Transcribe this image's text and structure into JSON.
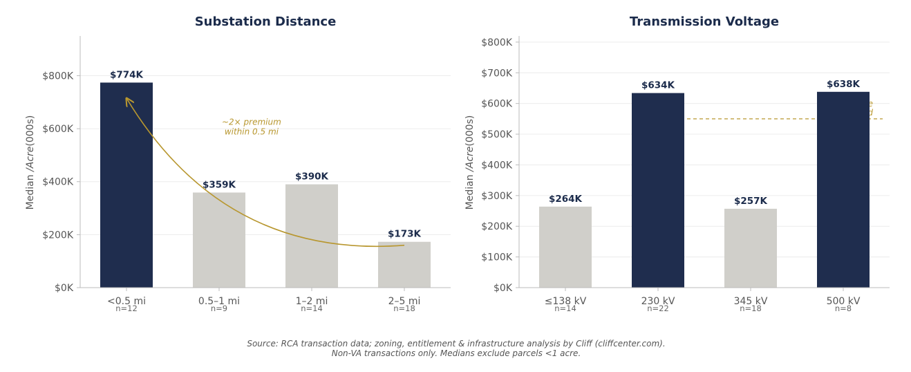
{
  "chart_data": [
    {
      "type": "bar",
      "title": "Substation Distance",
      "ylabel": "Median /Acre (000s)",
      "ylabel_parts": [
        "Median ",
        "/Acre",
        "(000s)"
      ],
      "ylim": [
        0,
        950
      ],
      "yticks": [
        0,
        200,
        400,
        600,
        800
      ],
      "ytick_labels": [
        "$0K",
        "$200K",
        "$400K",
        "$600K",
        "$800K"
      ],
      "categories": [
        "<0.5 mi",
        "0.5–1 mi",
        "1–2 mi",
        "2–5 mi"
      ],
      "sample_sizes": [
        "n=12",
        "n=9",
        "n=14",
        "n=18"
      ],
      "values": [
        774,
        359,
        390,
        173
      ],
      "value_labels": [
        "$774K",
        "$359K",
        "$390K",
        "$173K"
      ],
      "highlight": [
        true,
        false,
        false,
        false
      ],
      "grid": true,
      "annotation": {
        "lines": [
          "~2× premium",
          "within 0.5 mi"
        ],
        "arrow_from": {
          "category_index": 3,
          "value": 160
        },
        "arrow_to": {
          "category_index": 0,
          "value": 715
        },
        "arrow_text_anchor": {
          "category_index": 1.35,
          "value": 615
        }
      }
    },
    {
      "type": "bar",
      "title": "Transmission Voltage",
      "ylabel": "Median /Acre (000s)",
      "ylabel_parts": [
        "Median ",
        "/Acre",
        "(000s)"
      ],
      "ylim": [
        0,
        820
      ],
      "yticks": [
        0,
        100,
        200,
        300,
        400,
        500,
        600,
        700,
        800
      ],
      "ytick_labels": [
        "$0K",
        "$100K",
        "$200K",
        "$300K",
        "$400K",
        "$500K",
        "$600K",
        "$700K",
        "$800K"
      ],
      "categories": [
        "≤138 kV",
        "230 kV",
        "345 kV",
        "500 kV"
      ],
      "sample_sizes": [
        "n=14",
        "n=22",
        "n=18",
        "n=8"
      ],
      "values": [
        264,
        634,
        257,
        638
      ],
      "value_labels": [
        "$264K",
        "$634K",
        "$257K",
        "$638K"
      ],
      "highlight": [
        false,
        true,
        false,
        true
      ],
      "grid": true,
      "threshold": {
        "value": 550,
        "lines": [
          "Hyperscale",
          "threshold"
        ]
      }
    }
  ],
  "source_lines": [
    "Source: RCA transaction data; zoning, entitlement & infrastructure analysis by Cliff (cliffcenter.com).",
    "Non-VA transactions only. Medians exclude parcels <1 acre."
  ],
  "colors": {
    "highlight_bar": "#1f2d4e",
    "muted_bar": "#d0cfca",
    "accent": "#b8972f",
    "grid": "#ececec",
    "axis": "#bbbbbb",
    "title": "#1b2b4b",
    "text": "#555555"
  }
}
